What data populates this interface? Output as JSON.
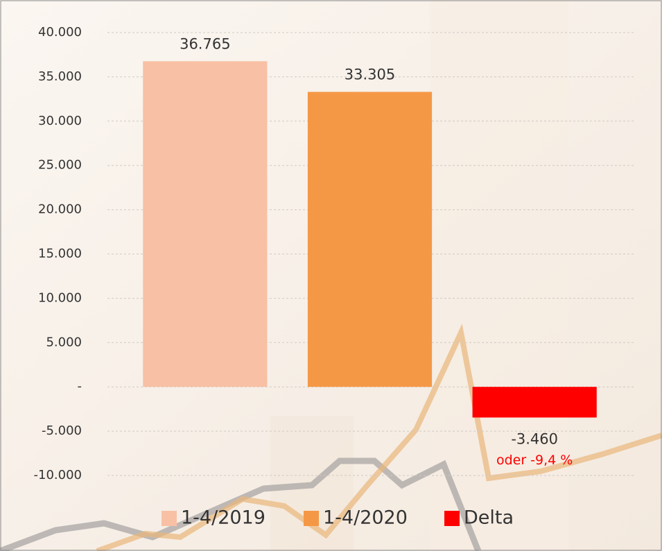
{
  "chart_data": {
    "type": "bar",
    "series": [
      {
        "name": "1-4/2019",
        "color": "#f8c0a4",
        "values": [
          36765
        ],
        "value_labels": [
          "36.765"
        ]
      },
      {
        "name": "1-4/2020",
        "color": "#f59846",
        "values": [
          33305
        ],
        "value_labels": [
          "33.305"
        ]
      },
      {
        "name": "Delta",
        "color": "#ff0000",
        "values": [
          -3460
        ],
        "value_labels": [
          "-3.460"
        ]
      }
    ],
    "annotation": {
      "text": "oder -9,4 %",
      "color": "#ff0000"
    },
    "ylim": [
      -10000,
      40000
    ],
    "yticks": [
      {
        "value": 40000,
        "label": "40.000"
      },
      {
        "value": 35000,
        "label": "35.000"
      },
      {
        "value": 30000,
        "label": "30.000"
      },
      {
        "value": 25000,
        "label": "25.000"
      },
      {
        "value": 20000,
        "label": "20.000"
      },
      {
        "value": 15000,
        "label": "15.000"
      },
      {
        "value": 10000,
        "label": "10.000"
      },
      {
        "value": 5000,
        "label": "5.000"
      },
      {
        "value": 0,
        "label": "-"
      },
      {
        "value": -5000,
        "label": "-5.000"
      },
      {
        "value": -10000,
        "label": "-10.000"
      }
    ],
    "grid": true,
    "legend": "bottom"
  }
}
